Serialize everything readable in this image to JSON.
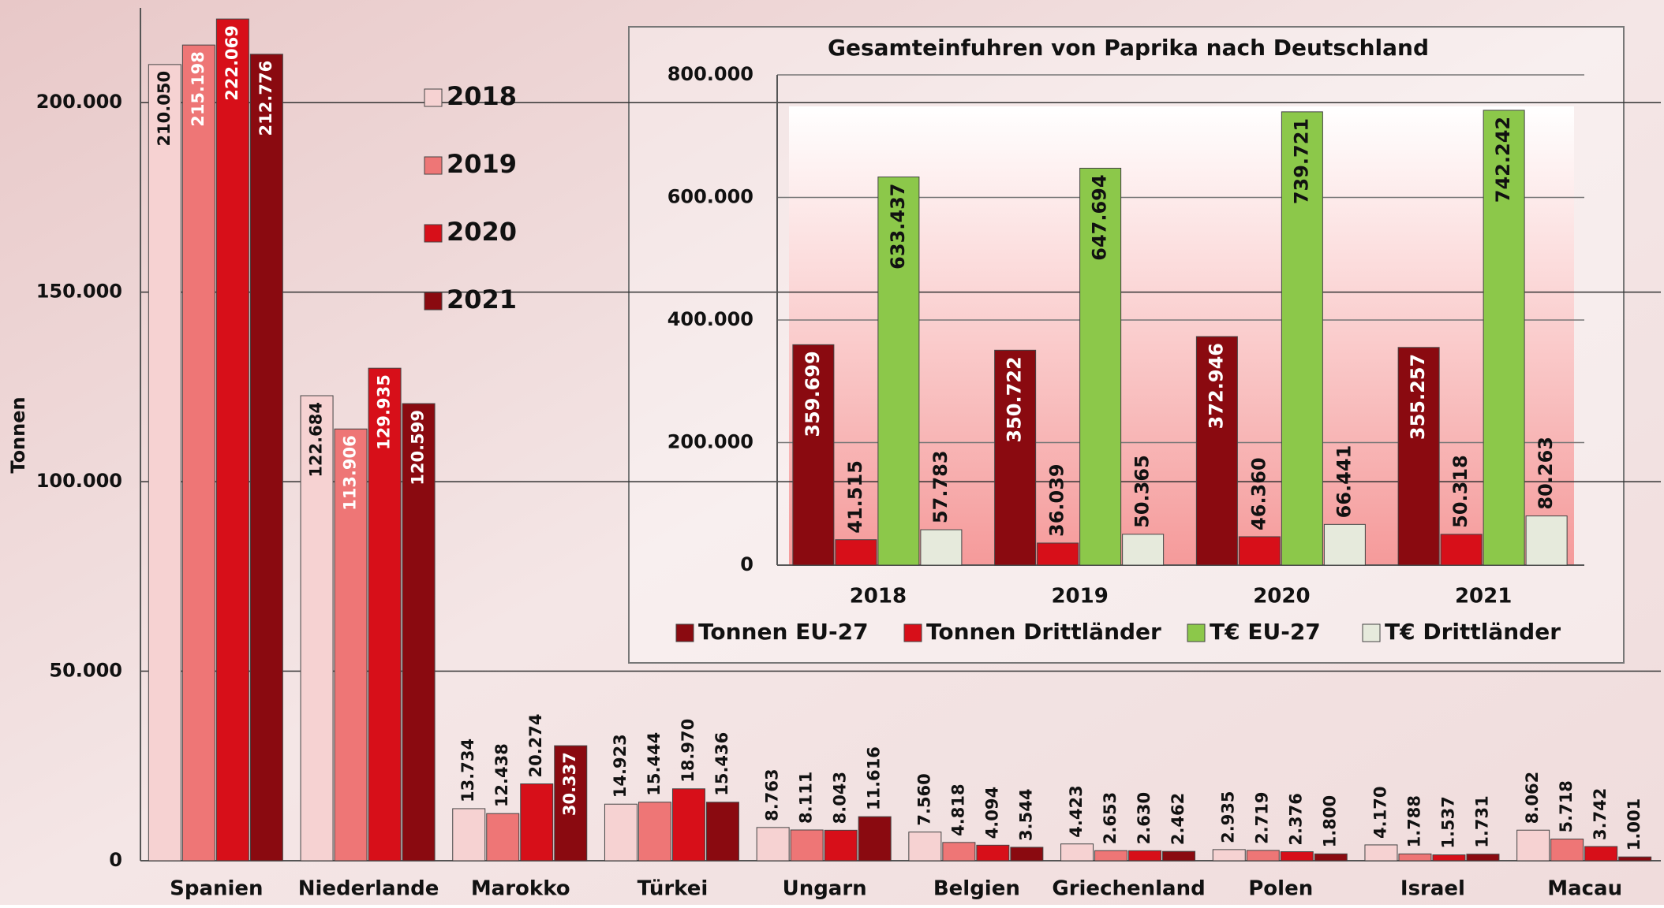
{
  "chart_data": [
    {
      "type": "bar",
      "y_label": "Tonnen",
      "categories": [
        "Spanien",
        "Niederlande",
        "Marokko",
        "Türkei",
        "Ungarn",
        "Belgien",
        "Griechenland",
        "Polen",
        "Israel",
        "Macau"
      ],
      "series": [
        {
          "name": "2018",
          "color": "#f6d2d2",
          "values": [
            210050,
            122684,
            13734,
            14923,
            8763,
            7560,
            4423,
            2935,
            4170,
            8062
          ],
          "value_labels": [
            "210.050",
            "122.684",
            "13.734",
            "14.923",
            "8.763",
            "7.560",
            "4.423",
            "2.935",
            "4.170",
            "8.062"
          ]
        },
        {
          "name": "2019",
          "color": "#ee7676",
          "values": [
            215198,
            113906,
            12438,
            15444,
            8111,
            4818,
            2653,
            2719,
            1788,
            5718
          ],
          "value_labels": [
            "215.198",
            "113.906",
            "12.438",
            "15.444",
            "8.111",
            "4.818",
            "2.653",
            "2.719",
            "1.788",
            "5.718"
          ]
        },
        {
          "name": "2020",
          "color": "#d70f19",
          "values": [
            222069,
            129935,
            20274,
            18970,
            8043,
            4094,
            2630,
            2376,
            1537,
            3742
          ],
          "value_labels": [
            "222.069",
            "129.935",
            "20.274",
            "18.970",
            "8.043",
            "4.094",
            "2.630",
            "2.376",
            "1.537",
            "3.742"
          ]
        },
        {
          "name": "2021",
          "color": "#8a0a10",
          "values": [
            212776,
            120599,
            30337,
            15436,
            11616,
            3544,
            2462,
            1800,
            1731,
            1001
          ],
          "value_labels": [
            "212.776",
            "120.599",
            "30.337",
            "15.436",
            "11.616",
            "3.544",
            "2.462",
            "1.800",
            "1.731",
            "1.001"
          ]
        }
      ],
      "ylim": [
        0,
        225000
      ],
      "yticks": [
        0,
        {
          "value": 50000,
          "label": "50.000"
        },
        {
          "value": 100000,
          "label": "100.000"
        },
        {
          "value": 150000,
          "label": "150.000"
        },
        {
          "value": 200000,
          "label": "200.000"
        }
      ],
      "grid": true
    },
    {
      "type": "bar",
      "title": "Gesamteinfuhren von Paprika nach Deutschland",
      "categories": [
        "2018",
        "2019",
        "2020",
        "2021"
      ],
      "series": [
        {
          "name": "Tonnen EU-27",
          "color": "#8a0a10",
          "values": [
            359699,
            350722,
            372946,
            355257
          ],
          "value_labels": [
            "359.699",
            "350.722",
            "372.946",
            "355.257"
          ]
        },
        {
          "name": "Tonnen Drittländer",
          "color": "#d70f19",
          "values": [
            41515,
            36039,
            46360,
            50318
          ],
          "value_labels": [
            "41.515",
            "36.039",
            "46.360",
            "50.318"
          ]
        },
        {
          "name": "T€ EU-27",
          "color": "#8cc84a",
          "values": [
            633437,
            647694,
            739721,
            742242
          ],
          "value_labels": [
            "633.437",
            "647.694",
            "739.721",
            "742.242"
          ]
        },
        {
          "name": "T€ Drittländer",
          "color": "#e6eadc",
          "values": [
            57783,
            50365,
            66441,
            80263
          ],
          "value_labels": [
            "57.783",
            "50.365",
            "66.441",
            "80.263"
          ]
        }
      ],
      "ylim": [
        0,
        800000
      ],
      "yticks": [
        0,
        {
          "value": 200000,
          "label": "200.000"
        },
        {
          "value": 400000,
          "label": "400.000"
        },
        {
          "value": 600000,
          "label": "600.000"
        },
        {
          "value": 800000,
          "label": "800.000"
        }
      ],
      "grid": true
    }
  ]
}
